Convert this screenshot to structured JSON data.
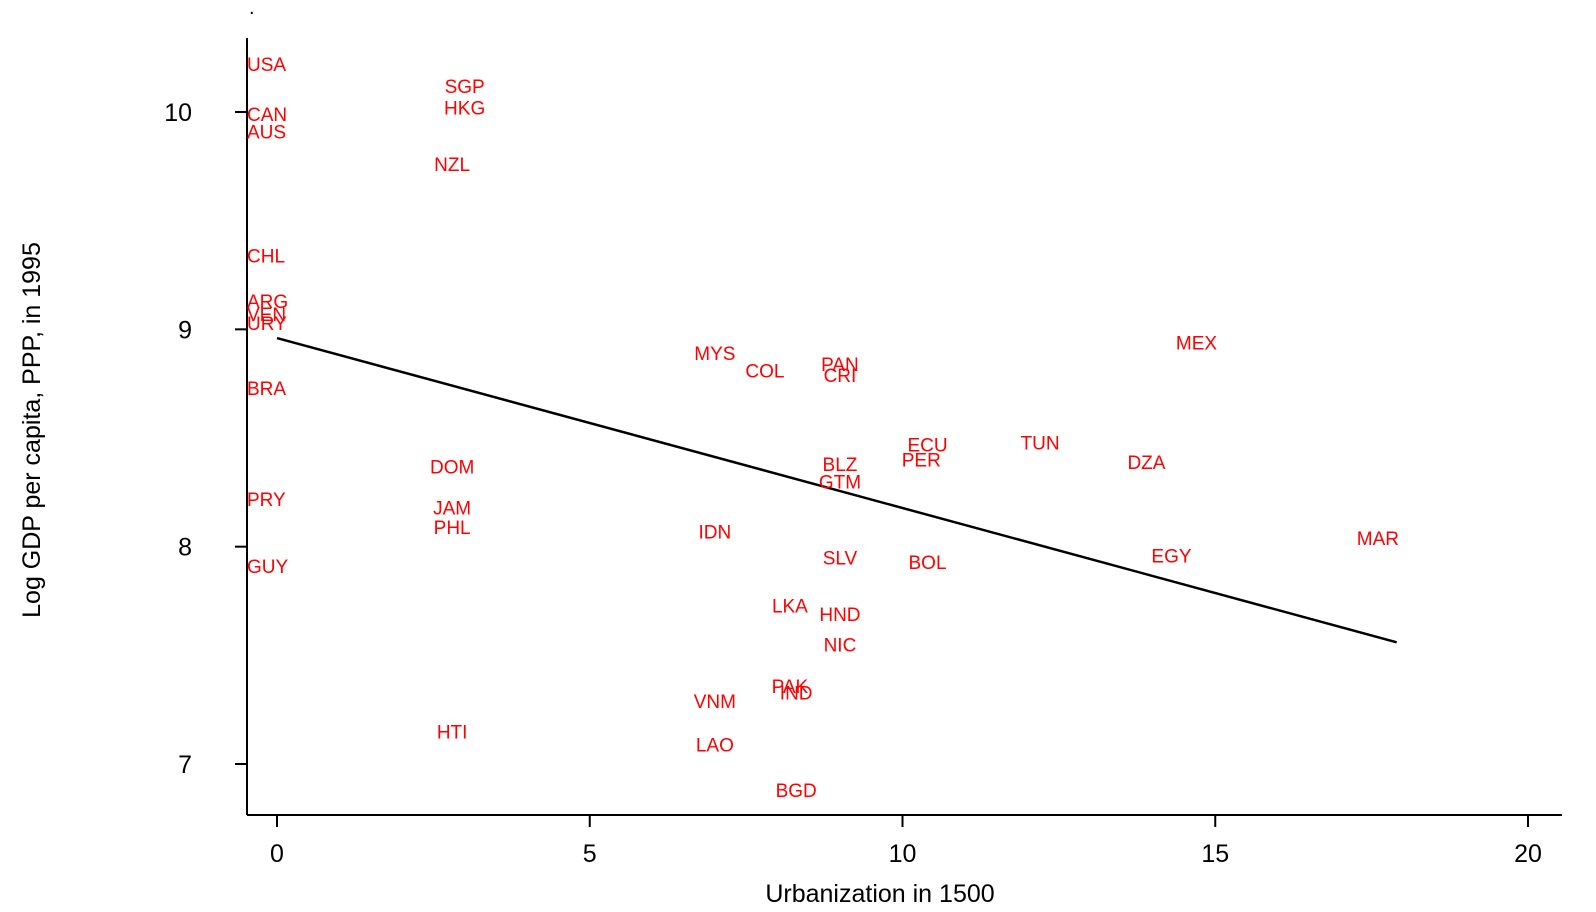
{
  "chart_data": {
    "type": "scatter",
    "title": "",
    "corner_mark": ".",
    "xlabel": "Urbanization in 1500",
    "ylabel": "Log GDP per capita, PPP, in 1995",
    "xlim": [
      -0.5,
      20.5
    ],
    "ylim": [
      6.77,
      10.35
    ],
    "xticks": [
      0,
      5,
      10,
      15,
      20
    ],
    "yticks": [
      7,
      8,
      9,
      10
    ],
    "grid": false,
    "legend": "none",
    "label_color": "#ff0000",
    "line_color": "#000000",
    "points": [
      {
        "label": "USA",
        "x": 0,
        "y": 10.22
      },
      {
        "label": "SGP",
        "x": 3,
        "y": 10.12
      },
      {
        "label": "HKG",
        "x": 3,
        "y": 10.02
      },
      {
        "label": "CAN",
        "x": 0,
        "y": 9.99
      },
      {
        "label": "AUS",
        "x": 0,
        "y": 9.91
      },
      {
        "label": "NZL",
        "x": 2.8,
        "y": 9.76
      },
      {
        "label": "CHL",
        "x": 0,
        "y": 9.34
      },
      {
        "label": "ARG",
        "x": 0,
        "y": 9.13
      },
      {
        "label": "VEN",
        "x": 0,
        "y": 9.07
      },
      {
        "label": "URY",
        "x": 0,
        "y": 9.03
      },
      {
        "label": "MEX",
        "x": 14.7,
        "y": 8.94
      },
      {
        "label": "MYS",
        "x": 7,
        "y": 8.89
      },
      {
        "label": "COL",
        "x": 7.8,
        "y": 8.81
      },
      {
        "label": "PAN",
        "x": 9,
        "y": 8.84
      },
      {
        "label": "CRI",
        "x": 9,
        "y": 8.79
      },
      {
        "label": "BRA",
        "x": 0,
        "y": 8.73
      },
      {
        "label": "TUN",
        "x": 12.2,
        "y": 8.48
      },
      {
        "label": "ECU",
        "x": 10.4,
        "y": 8.47
      },
      {
        "label": "PER",
        "x": 10.3,
        "y": 8.4
      },
      {
        "label": "DZA",
        "x": 13.9,
        "y": 8.39
      },
      {
        "label": "DOM",
        "x": 2.8,
        "y": 8.37
      },
      {
        "label": "BLZ",
        "x": 9,
        "y": 8.38
      },
      {
        "label": "GTM",
        "x": 9,
        "y": 8.3
      },
      {
        "label": "PRY",
        "x": 0,
        "y": 8.22
      },
      {
        "label": "JAM",
        "x": 2.8,
        "y": 8.18
      },
      {
        "label": "PHL",
        "x": 2.8,
        "y": 8.09
      },
      {
        "label": "IDN",
        "x": 7,
        "y": 8.07
      },
      {
        "label": "MAR",
        "x": 17.6,
        "y": 8.04
      },
      {
        "label": "EGY",
        "x": 14.3,
        "y": 7.96
      },
      {
        "label": "SLV",
        "x": 9,
        "y": 7.95
      },
      {
        "label": "BOL",
        "x": 10.4,
        "y": 7.93
      },
      {
        "label": "GUY",
        "x": 0,
        "y": 7.91
      },
      {
        "label": "LKA",
        "x": 8.2,
        "y": 7.73
      },
      {
        "label": "HND",
        "x": 9,
        "y": 7.69
      },
      {
        "label": "NIC",
        "x": 9,
        "y": 7.55
      },
      {
        "label": "PAK",
        "x": 8.2,
        "y": 7.36
      },
      {
        "label": "IND",
        "x": 8.3,
        "y": 7.33
      },
      {
        "label": "VNM",
        "x": 7,
        "y": 7.29
      },
      {
        "label": "HTI",
        "x": 2.8,
        "y": 7.15
      },
      {
        "label": "LAO",
        "x": 7,
        "y": 7.09
      },
      {
        "label": "BGD",
        "x": 8.3,
        "y": 6.88
      }
    ],
    "fit_line": {
      "x": [
        0,
        17.9
      ],
      "y": [
        8.96,
        7.56
      ]
    }
  }
}
